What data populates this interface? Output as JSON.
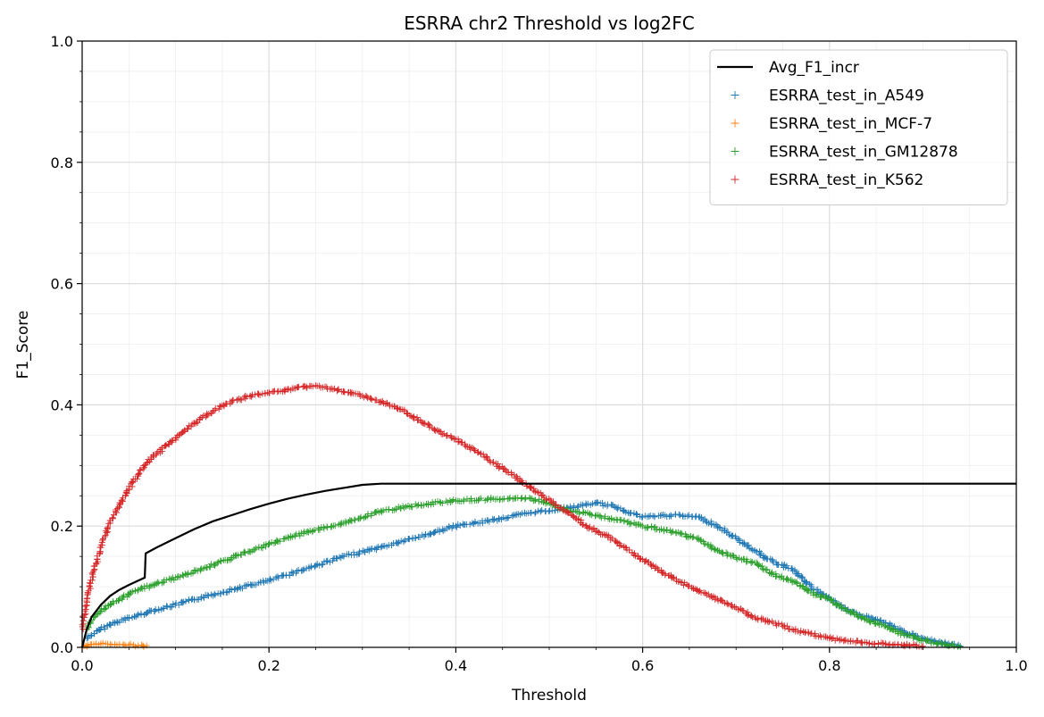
{
  "chart_data": {
    "type": "scatter",
    "title": "ESRRA chr2 Threshold vs log2FC",
    "xlabel": "Threshold",
    "ylabel": "F1_Score",
    "xlim": [
      0,
      1
    ],
    "ylim": [
      0,
      1
    ],
    "x_ticks": [
      "0.0",
      "0.2",
      "0.4",
      "0.6",
      "0.8",
      "1.0"
    ],
    "y_ticks": [
      "0.0",
      "0.2",
      "0.4",
      "0.6",
      "0.8",
      "1.0"
    ],
    "grid": true,
    "minor_grid": true,
    "legend_position": "top-right",
    "series": [
      {
        "name": "Avg_F1_incr",
        "kind": "line",
        "color": "#000000",
        "x": [
          0,
          0.005,
          0.01,
          0.02,
          0.03,
          0.04,
          0.05,
          0.06,
          0.067,
          0.068,
          0.08,
          0.1,
          0.12,
          0.14,
          0.16,
          0.18,
          0.2,
          0.22,
          0.24,
          0.26,
          0.28,
          0.3,
          0.32,
          0.34,
          0.4,
          0.5,
          0.6,
          0.7,
          0.8,
          0.9,
          1.0
        ],
        "y": [
          0,
          0.03,
          0.05,
          0.07,
          0.085,
          0.095,
          0.103,
          0.11,
          0.115,
          0.155,
          0.165,
          0.18,
          0.195,
          0.208,
          0.218,
          0.228,
          0.237,
          0.245,
          0.252,
          0.258,
          0.263,
          0.268,
          0.27,
          0.27,
          0.27,
          0.27,
          0.27,
          0.27,
          0.27,
          0.27,
          0.27
        ]
      },
      {
        "name": "ESRRA_test_in_A549",
        "kind": "points",
        "color": "#1f77b4",
        "x": [
          0.005,
          0.01,
          0.02,
          0.03,
          0.05,
          0.07,
          0.1,
          0.13,
          0.16,
          0.2,
          0.24,
          0.28,
          0.32,
          0.36,
          0.4,
          0.44,
          0.48,
          0.52,
          0.55,
          0.57,
          0.6,
          0.63,
          0.66,
          0.68,
          0.7,
          0.72,
          0.74,
          0.76,
          0.78,
          0.8,
          0.82,
          0.84,
          0.86,
          0.88,
          0.9,
          0.92,
          0.94
        ],
        "y": [
          0.015,
          0.02,
          0.03,
          0.038,
          0.048,
          0.058,
          0.07,
          0.083,
          0.095,
          0.11,
          0.13,
          0.15,
          0.165,
          0.182,
          0.2,
          0.21,
          0.222,
          0.23,
          0.238,
          0.232,
          0.215,
          0.218,
          0.215,
          0.2,
          0.18,
          0.16,
          0.14,
          0.13,
          0.1,
          0.08,
          0.06,
          0.05,
          0.04,
          0.025,
          0.015,
          0.008,
          0.002
        ]
      },
      {
        "name": "ESRRA_test_in_MCF-7",
        "kind": "points",
        "color": "#ff7f0e",
        "x": [
          0.002,
          0.006,
          0.01,
          0.015,
          0.02,
          0.025,
          0.03,
          0.035,
          0.04,
          0.045,
          0.05,
          0.055,
          0.06,
          0.065,
          0.069
        ],
        "y": [
          0.002,
          0.004,
          0.005,
          0.006,
          0.006,
          0.006,
          0.005,
          0.005,
          0.005,
          0.004,
          0.004,
          0.004,
          0.003,
          0.003,
          0.003
        ]
      },
      {
        "name": "ESRRA_test_in_GM12878",
        "kind": "points",
        "color": "#2ca02c",
        "x": [
          0.005,
          0.01,
          0.02,
          0.03,
          0.04,
          0.06,
          0.08,
          0.1,
          0.13,
          0.16,
          0.2,
          0.24,
          0.28,
          0.32,
          0.36,
          0.4,
          0.44,
          0.48,
          0.5,
          0.52,
          0.55,
          0.58,
          0.6,
          0.62,
          0.64,
          0.66,
          0.68,
          0.7,
          0.72,
          0.74,
          0.76,
          0.78,
          0.8,
          0.82,
          0.84,
          0.86,
          0.88,
          0.9,
          0.92,
          0.94
        ],
        "y": [
          0.03,
          0.045,
          0.06,
          0.07,
          0.08,
          0.095,
          0.105,
          0.115,
          0.13,
          0.148,
          0.17,
          0.19,
          0.205,
          0.225,
          0.235,
          0.242,
          0.245,
          0.245,
          0.238,
          0.225,
          0.218,
          0.208,
          0.2,
          0.195,
          0.188,
          0.178,
          0.16,
          0.148,
          0.14,
          0.12,
          0.11,
          0.09,
          0.08,
          0.06,
          0.045,
          0.035,
          0.02,
          0.012,
          0.005,
          0.001
        ]
      },
      {
        "name": "ESRRA_test_in_K562",
        "kind": "points",
        "color": "#d62728",
        "x": [
          0.001,
          0.003,
          0.005,
          0.008,
          0.012,
          0.016,
          0.02,
          0.025,
          0.03,
          0.04,
          0.05,
          0.06,
          0.07,
          0.08,
          0.1,
          0.12,
          0.14,
          0.16,
          0.18,
          0.2,
          0.22,
          0.24,
          0.26,
          0.28,
          0.3,
          0.32,
          0.34,
          0.36,
          0.38,
          0.4,
          0.42,
          0.44,
          0.46,
          0.48,
          0.5,
          0.52,
          0.54,
          0.56,
          0.58,
          0.6,
          0.62,
          0.64,
          0.66,
          0.68,
          0.7,
          0.72,
          0.74,
          0.76,
          0.78,
          0.8,
          0.82,
          0.84,
          0.86,
          0.88,
          0.9
        ],
        "y": [
          0.03,
          0.06,
          0.08,
          0.1,
          0.125,
          0.145,
          0.165,
          0.185,
          0.205,
          0.235,
          0.26,
          0.285,
          0.305,
          0.32,
          0.345,
          0.37,
          0.39,
          0.405,
          0.415,
          0.42,
          0.425,
          0.43,
          0.43,
          0.422,
          0.415,
          0.405,
          0.393,
          0.375,
          0.358,
          0.343,
          0.325,
          0.305,
          0.285,
          0.263,
          0.243,
          0.222,
          0.2,
          0.185,
          0.165,
          0.145,
          0.125,
          0.108,
          0.092,
          0.08,
          0.065,
          0.05,
          0.04,
          0.03,
          0.022,
          0.015,
          0.01,
          0.008,
          0.006,
          0.004,
          0.002
        ]
      }
    ]
  }
}
